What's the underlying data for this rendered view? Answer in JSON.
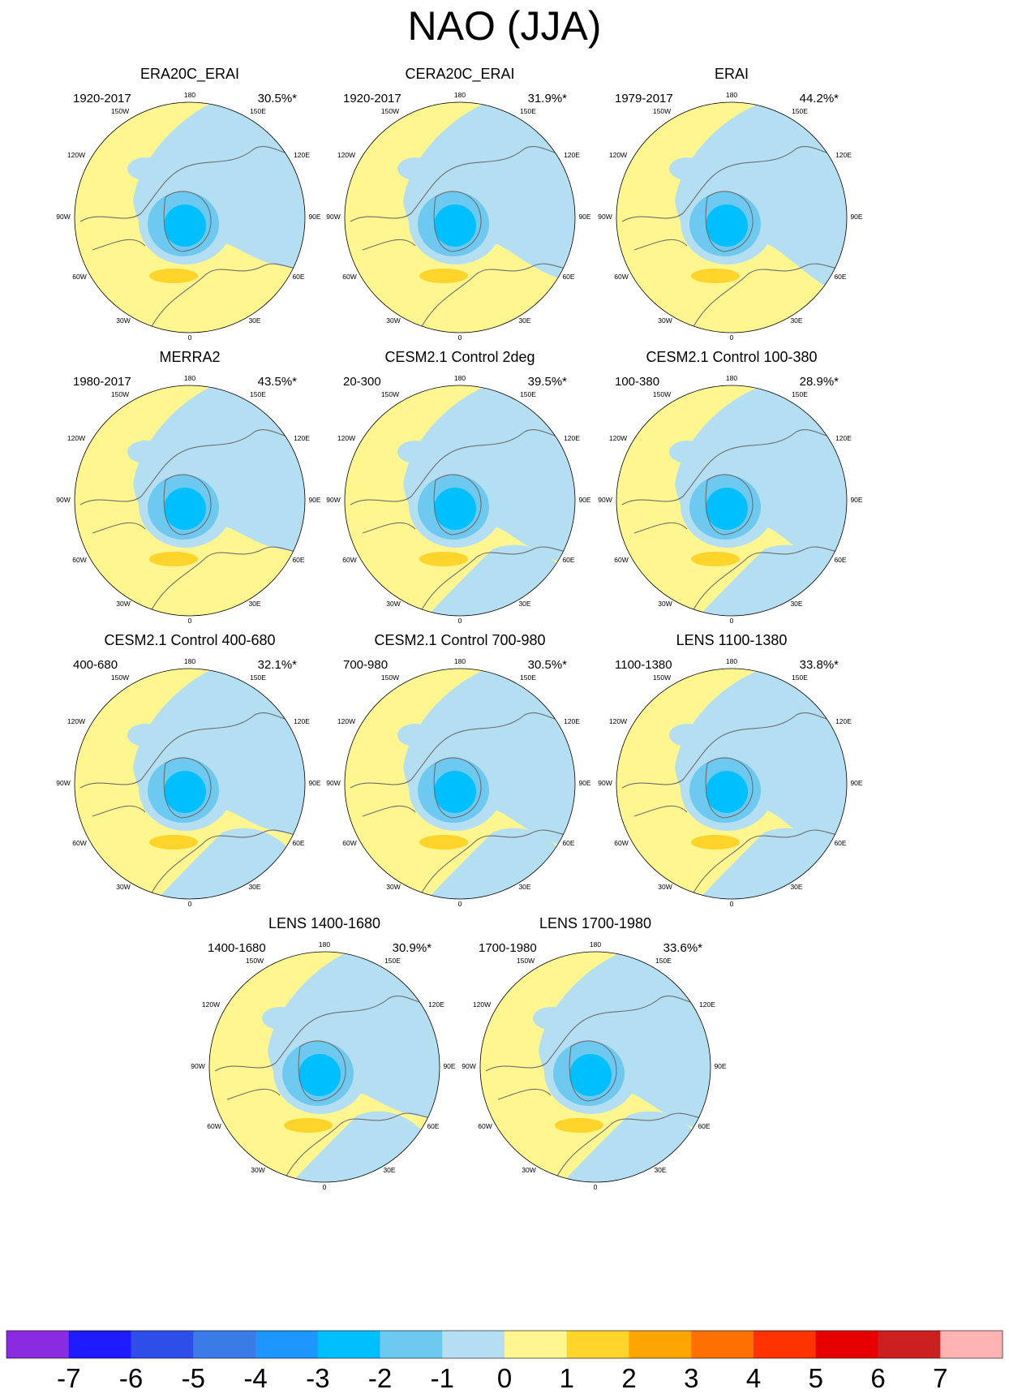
{
  "title": "NAO (JJA)",
  "panels": [
    {
      "title": "ERA20C_ERAI",
      "period": "1920-2017",
      "variance": "30.5%*"
    },
    {
      "title": "CERA20C_ERAI",
      "period": "1920-2017",
      "variance": "31.9%*"
    },
    {
      "title": "ERAI",
      "period": "1979-2017",
      "variance": "44.2%*"
    },
    {
      "title": "MERRA2",
      "period": "1980-2017",
      "variance": "43.5%*"
    },
    {
      "title": "CESM2.1 Control 2deg",
      "period": "20-300",
      "variance": "39.5%*"
    },
    {
      "title": "CESM2.1 Control 100-380",
      "period": "100-380",
      "variance": "28.9%*"
    },
    {
      "title": "CESM2.1 Control 400-680",
      "period": "400-680",
      "variance": "32.1%*"
    },
    {
      "title": "CESM2.1 Control 700-980",
      "period": "700-980",
      "variance": "30.5%*"
    },
    {
      "title": "LENS 1100-1380",
      "period": "1100-1380",
      "variance": "33.8%*"
    },
    {
      "title": "LENS 1400-1680",
      "period": "1400-1680",
      "variance": "30.9%*"
    },
    {
      "title": "LENS 1700-1980",
      "period": "1700-1980",
      "variance": "33.6%*"
    }
  ],
  "longitude_labels": [
    "180",
    "150E",
    "120E",
    "90E",
    "60E",
    "30E",
    "0",
    "30W",
    "60W",
    "90W",
    "120W",
    "150W"
  ],
  "colorbar": {
    "labels": [
      "-7",
      "-6",
      "-5",
      "-4",
      "-3",
      "-2",
      "-1",
      "0",
      "1",
      "2",
      "3",
      "4",
      "5",
      "6",
      "7"
    ],
    "colors": [
      "#8a2be2",
      "#1c1cff",
      "#2d4ee8",
      "#3a7be8",
      "#1e96ff",
      "#00bfff",
      "#6ec9f0",
      "#b4dff2",
      "#fff68f",
      "#ffd42a",
      "#ffa500",
      "#ff7000",
      "#ff3300",
      "#e60000",
      "#cc1f1f",
      "#ffb3b3"
    ]
  },
  "palette": {
    "pos_weak": "#fff68f",
    "neg_weak": "#b4dff2",
    "neg_1": "#6ec9f0",
    "neg_2": "#00bfff",
    "pos_1": "#ffd42a",
    "coast": "#6e6e6e"
  }
}
